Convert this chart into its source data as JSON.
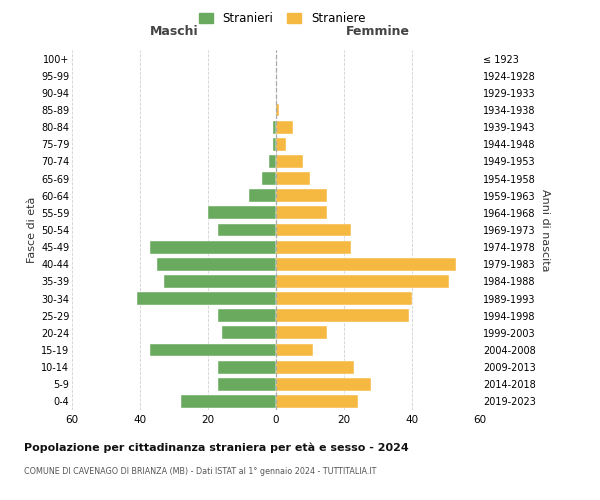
{
  "age_groups": [
    "0-4",
    "5-9",
    "10-14",
    "15-19",
    "20-24",
    "25-29",
    "30-34",
    "35-39",
    "40-44",
    "45-49",
    "50-54",
    "55-59",
    "60-64",
    "65-69",
    "70-74",
    "75-79",
    "80-84",
    "85-89",
    "90-94",
    "95-99",
    "100+"
  ],
  "birth_years": [
    "2019-2023",
    "2014-2018",
    "2009-2013",
    "2004-2008",
    "1999-2003",
    "1994-1998",
    "1989-1993",
    "1984-1988",
    "1979-1983",
    "1974-1978",
    "1969-1973",
    "1964-1968",
    "1959-1963",
    "1954-1958",
    "1949-1953",
    "1944-1948",
    "1939-1943",
    "1934-1938",
    "1929-1933",
    "1924-1928",
    "≤ 1923"
  ],
  "maschi": [
    28,
    17,
    17,
    37,
    16,
    17,
    41,
    33,
    35,
    37,
    17,
    20,
    8,
    4,
    2,
    1,
    1,
    0,
    0,
    0,
    0
  ],
  "femmine": [
    24,
    28,
    23,
    11,
    15,
    39,
    40,
    51,
    53,
    22,
    22,
    15,
    15,
    10,
    8,
    3,
    5,
    1,
    0,
    0,
    0
  ],
  "maschi_color": "#6aaa5e",
  "femmine_color": "#f5b942",
  "background_color": "#ffffff",
  "grid_color": "#cccccc",
  "title": "Popolazione per cittadinanza straniera per età e sesso - 2024",
  "subtitle": "COMUNE DI CAVENAGO DI BRIANZA (MB) - Dati ISTAT al 1° gennaio 2024 - TUTTITALIA.IT",
  "ylabel_left": "Fasce di età",
  "ylabel_right": "Anni di nascita",
  "xlabel_left": "Maschi",
  "xlabel_right": "Femmine",
  "legend_maschi": "Stranieri",
  "legend_femmine": "Straniere",
  "xlim": 60
}
